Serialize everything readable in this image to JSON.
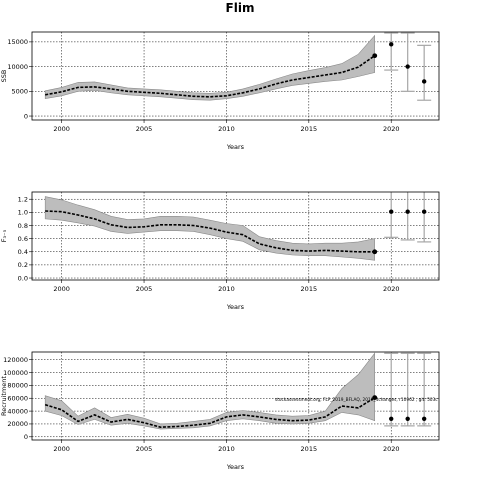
{
  "title": "Flim",
  "colors": {
    "band": "#bdbdbd",
    "band_edge": "#8a8a8a",
    "line": "#000000",
    "errorbar": "#a6a6a6"
  },
  "chart_data": [
    {
      "type": "line",
      "ylabel": "SSB",
      "xlabel": "Years",
      "xlim": [
        1998.2,
        2022.9
      ],
      "ylim": [
        -800,
        17000
      ],
      "xticks": [
        2000,
        2005,
        2010,
        2015,
        2020
      ],
      "yticks": [
        0,
        5000,
        10000,
        15000
      ],
      "ytick_labels": [
        "0",
        "5000",
        "10000",
        "15000"
      ],
      "grid": true,
      "series": [
        {
          "x": [
            1999,
            2000,
            2001,
            2002,
            2003,
            2004,
            2005,
            2006,
            2007,
            2008,
            2009,
            2010,
            2011,
            2012,
            2013,
            2014,
            2015,
            2016,
            2017,
            2018,
            2019
          ],
          "y": [
            4300,
            4900,
            5800,
            5900,
            5500,
            5000,
            4800,
            4600,
            4300,
            4000,
            3900,
            4100,
            4700,
            5500,
            6500,
            7300,
            7800,
            8300,
            8800,
            9900,
            12200
          ],
          "lower": [
            3500,
            4100,
            5000,
            5200,
            4700,
            4300,
            4100,
            3900,
            3600,
            3300,
            3200,
            3500,
            4000,
            4700,
            5500,
            6200,
            6600,
            7000,
            7300,
            8000,
            8800
          ],
          "upper": [
            5100,
            5800,
            6800,
            6900,
            6300,
            5700,
            5500,
            5300,
            5000,
            4700,
            4600,
            4800,
            5500,
            6400,
            7500,
            8500,
            9200,
            9800,
            10600,
            12500,
            16300
          ]
        }
      ],
      "forecast": [
        {
          "x": 2020,
          "y": 14500,
          "lower": 9300,
          "upper": 16800
        },
        {
          "x": 2021,
          "y": 10000,
          "lower": 5000,
          "upper": 16800
        },
        {
          "x": 2022,
          "y": 7000,
          "lower": 3200,
          "upper": 14300
        }
      ]
    },
    {
      "type": "line",
      "ylabel": "F₃₋₅",
      "xlabel": "Years",
      "xlim": [
        1998.2,
        2022.9
      ],
      "ylim": [
        -0.03,
        1.31
      ],
      "xticks": [
        2000,
        2005,
        2010,
        2015,
        2020
      ],
      "yticks": [
        0,
        0.2,
        0.4,
        0.6,
        0.8,
        1.0,
        1.2
      ],
      "ytick_labels": [
        "0.0",
        "0.2",
        "0.4",
        "0.6",
        "0.8",
        "1.0",
        "1.2"
      ],
      "grid": true,
      "series": [
        {
          "x": [
            1999,
            2000,
            2001,
            2002,
            2003,
            2004,
            2005,
            2006,
            2007,
            2008,
            2009,
            2010,
            2011,
            2012,
            2013,
            2014,
            2015,
            2016,
            2017,
            2018,
            2019
          ],
          "y": [
            1.02,
            1.01,
            0.96,
            0.9,
            0.81,
            0.77,
            0.78,
            0.81,
            0.81,
            0.8,
            0.76,
            0.7,
            0.66,
            0.52,
            0.46,
            0.42,
            0.41,
            0.42,
            0.41,
            0.4,
            0.4
          ],
          "lower": [
            0.9,
            0.88,
            0.84,
            0.79,
            0.71,
            0.68,
            0.7,
            0.72,
            0.72,
            0.71,
            0.66,
            0.6,
            0.56,
            0.43,
            0.38,
            0.35,
            0.34,
            0.34,
            0.32,
            0.3,
            0.27
          ],
          "upper": [
            1.24,
            1.19,
            1.11,
            1.04,
            0.94,
            0.89,
            0.9,
            0.94,
            0.94,
            0.93,
            0.88,
            0.83,
            0.8,
            0.63,
            0.57,
            0.53,
            0.52,
            0.53,
            0.53,
            0.55,
            0.6
          ]
        }
      ],
      "forecast": [
        {
          "x": 2020,
          "y": 1.01,
          "lower": 0.62,
          "upper": 1.31
        },
        {
          "x": 2021,
          "y": 1.01,
          "lower": 0.58,
          "upper": 1.31
        },
        {
          "x": 2022,
          "y": 1.01,
          "lower": 0.55,
          "upper": 1.31
        }
      ]
    },
    {
      "type": "line",
      "ylabel": "Recruitment",
      "xlabel": "Years",
      "xlim": [
        1998.2,
        2022.9
      ],
      "ylim": [
        -5000,
        132000
      ],
      "xticks": [
        2000,
        2005,
        2010,
        2015,
        2020
      ],
      "yticks": [
        0,
        20000,
        40000,
        60000,
        80000,
        100000,
        120000
      ],
      "ytick_labels": [
        "0",
        "20000",
        "40000",
        "60000",
        "80000",
        "100000",
        "120000"
      ],
      "grid": true,
      "annotation": "stockassessment.org, FLP_2019_BFLAQ, 2019_4changes, r10962 , git: 503c",
      "series": [
        {
          "x": [
            1999,
            2000,
            2001,
            2002,
            2003,
            2004,
            2005,
            2006,
            2007,
            2008,
            2009,
            2010,
            2011,
            2012,
            2013,
            2014,
            2015,
            2016,
            2017,
            2018,
            2019
          ],
          "y": [
            50000,
            42000,
            24000,
            34000,
            23000,
            27000,
            22000,
            15000,
            16000,
            18000,
            21000,
            31000,
            34000,
            31000,
            27000,
            25000,
            26000,
            31000,
            48000,
            45000,
            61000
          ],
          "lower": [
            40000,
            33000,
            19000,
            27000,
            18000,
            21000,
            17000,
            12000,
            13000,
            14000,
            17000,
            25000,
            28000,
            25000,
            21000,
            20000,
            21000,
            25000,
            38000,
            34000,
            25000
          ],
          "upper": [
            64000,
            56000,
            32000,
            45000,
            30000,
            35000,
            29000,
            20000,
            21000,
            24000,
            27000,
            38000,
            41000,
            38000,
            34000,
            32000,
            33000,
            40000,
            75000,
            97000,
            130000
          ]
        }
      ],
      "forecast": [
        {
          "x": 2020,
          "y": 28000,
          "lower": 17000,
          "upper": 130000
        },
        {
          "x": 2021,
          "y": 28000,
          "lower": 17000,
          "upper": 130000
        },
        {
          "x": 2022,
          "y": 28000,
          "lower": 17000,
          "upper": 130000
        }
      ]
    }
  ]
}
